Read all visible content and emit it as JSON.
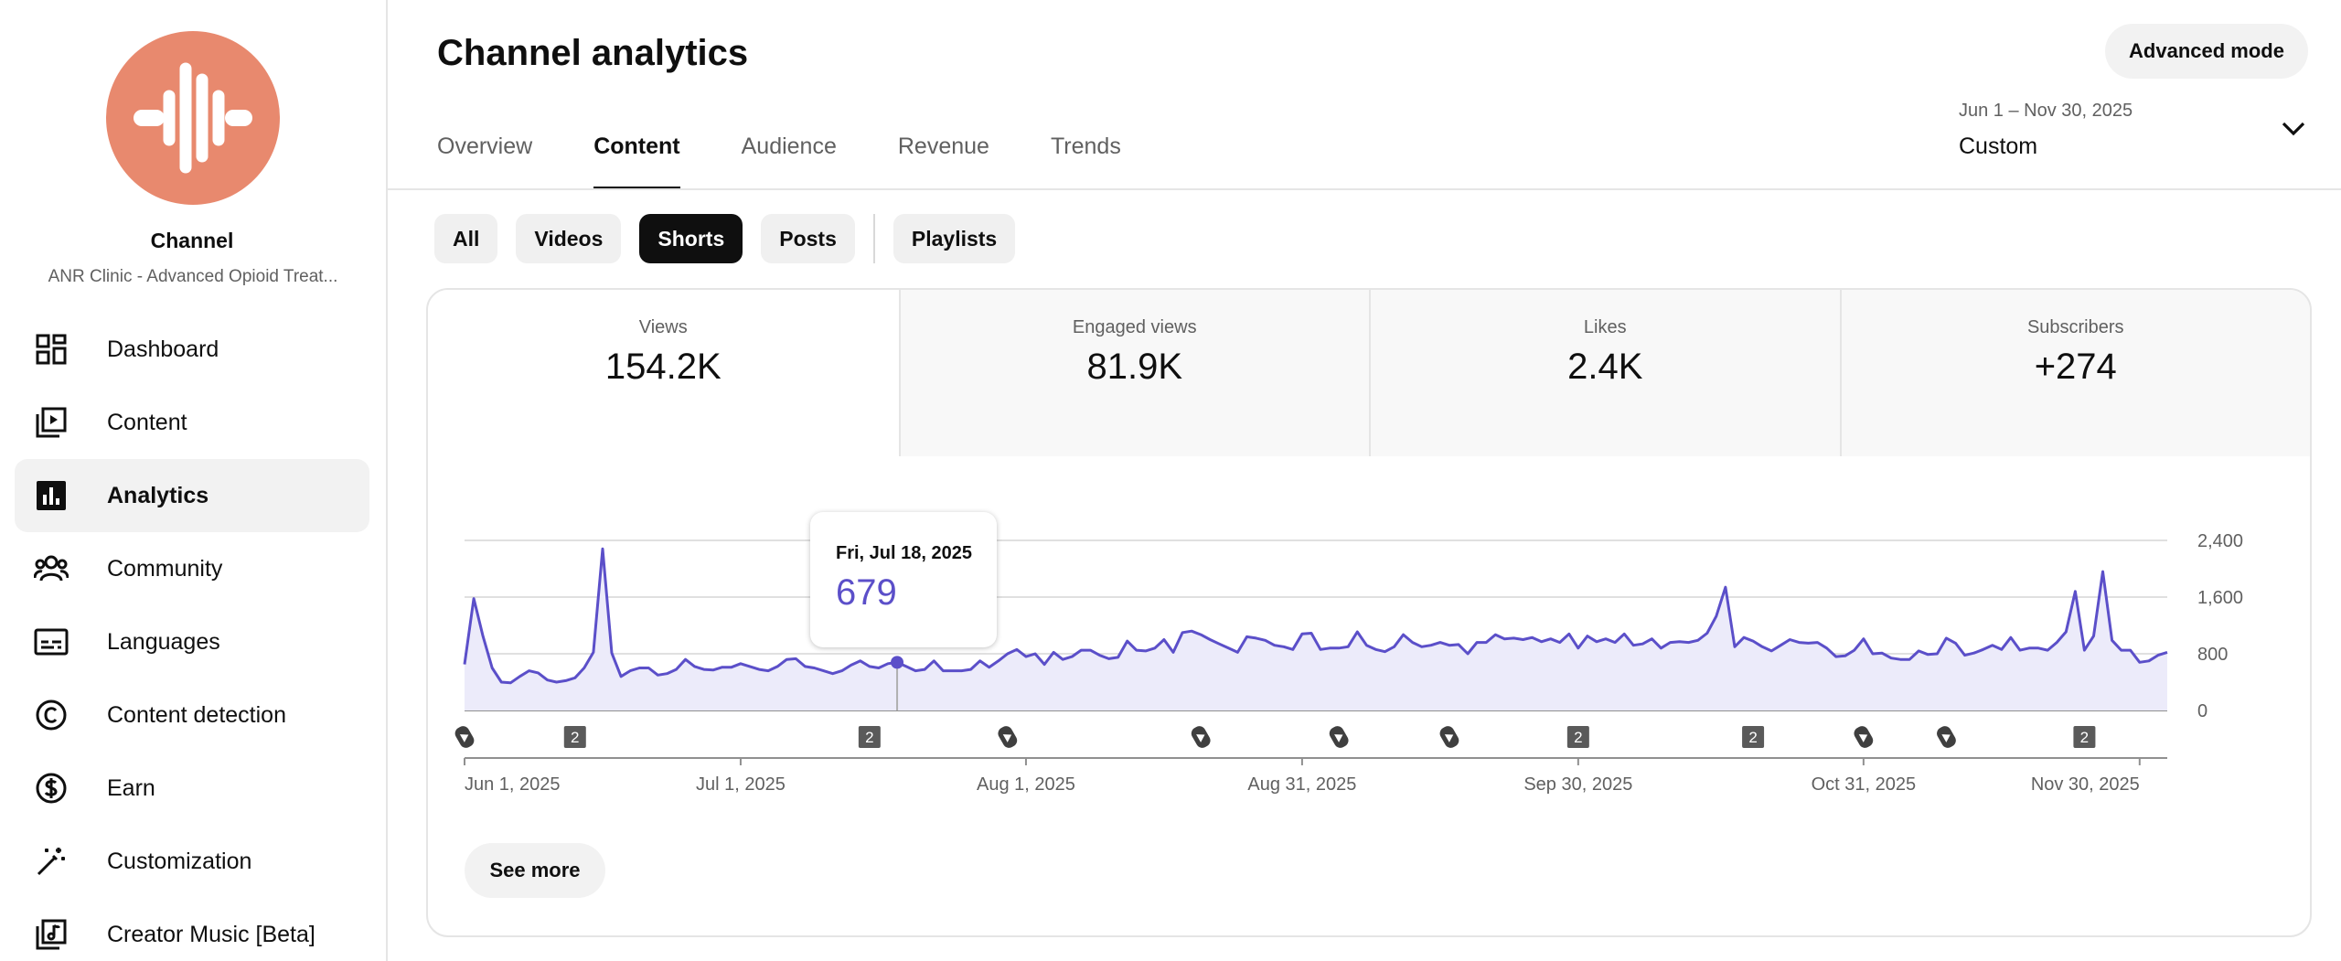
{
  "sidebar": {
    "channel_label": "Channel",
    "channel_name": "ANR Clinic - Advanced Opioid Treat...",
    "items": [
      {
        "label": "Dashboard",
        "icon": "dashboard-icon"
      },
      {
        "label": "Content",
        "icon": "content-icon"
      },
      {
        "label": "Analytics",
        "icon": "analytics-icon",
        "active": true
      },
      {
        "label": "Community",
        "icon": "community-icon"
      },
      {
        "label": "Languages",
        "icon": "languages-icon"
      },
      {
        "label": "Content detection",
        "icon": "copyright-icon"
      },
      {
        "label": "Earn",
        "icon": "dollar-icon"
      },
      {
        "label": "Customization",
        "icon": "magic-wand-icon"
      },
      {
        "label": "Creator Music [Beta]",
        "icon": "music-note-icon"
      }
    ]
  },
  "header": {
    "title": "Channel analytics",
    "advanced_mode": "Advanced mode",
    "tabs": [
      "Overview",
      "Content",
      "Audience",
      "Revenue",
      "Trends"
    ],
    "active_tab": "Content",
    "date_range": {
      "range": "Jun 1 – Nov 30, 2025",
      "label": "Custom"
    }
  },
  "chips": {
    "items": [
      "All",
      "Videos",
      "Shorts",
      "Posts"
    ],
    "playlists": "Playlists",
    "active": "Shorts"
  },
  "metrics": [
    {
      "label": "Views",
      "value": "154.2K"
    },
    {
      "label": "Engaged views",
      "value": "81.9K"
    },
    {
      "label": "Likes",
      "value": "2.4K"
    },
    {
      "label": "Subscribers",
      "value": "+274"
    }
  ],
  "tooltip": {
    "date": "Fri, Jul 18, 2025",
    "value": "679"
  },
  "see_more": "See more",
  "colors": {
    "accent": "#5b4fc9",
    "fill": "#ecebfa",
    "avatar": "#e8896e"
  },
  "chart_data": {
    "type": "area",
    "x_start": "Jun 1, 2025",
    "x_end": "Nov 30, 2025",
    "x_tick_labels": [
      "Jun 1, 2025",
      "Jul 1, 2025",
      "Aug 1, 2025",
      "Aug 31, 2025",
      "Sep 30, 2025",
      "Oct 31, 2025",
      "Nov 30, 2025"
    ],
    "y_tick_labels": [
      "2,400",
      "1,600",
      "800",
      "0"
    ],
    "ylim": [
      0,
      2400
    ],
    "grid": true,
    "hover_point": {
      "date": "Jul 18, 2025",
      "value": 679
    },
    "daily_views": [
      650,
      1580,
      1050,
      600,
      400,
      390,
      480,
      560,
      530,
      430,
      400,
      420,
      460,
      600,
      820,
      2280,
      810,
      480,
      560,
      600,
      600,
      500,
      520,
      580,
      720,
      620,
      580,
      570,
      610,
      610,
      660,
      620,
      580,
      560,
      620,
      720,
      730,
      620,
      600,
      560,
      520,
      560,
      640,
      700,
      620,
      600,
      660,
      679,
      620,
      560,
      580,
      700,
      560,
      560,
      560,
      580,
      700,
      610,
      700,
      800,
      860,
      760,
      800,
      650,
      820,
      720,
      760,
      850,
      850,
      780,
      730,
      750,
      980,
      850,
      840,
      880,
      1000,
      820,
      1100,
      1120,
      1070,
      1000,
      940,
      880,
      820,
      1040,
      1020,
      990,
      920,
      900,
      860,
      1080,
      1090,
      860,
      880,
      880,
      900,
      1110,
      920,
      860,
      830,
      900,
      1070,
      960,
      900,
      920,
      960,
      920,
      930,
      800,
      960,
      960,
      1070,
      1010,
      1020,
      1000,
      1030,
      970,
      1010,
      960,
      1080,
      880,
      1050,
      970,
      1010,
      960,
      1080,
      920,
      940,
      1010,
      880,
      960,
      970,
      960,
      990,
      1090,
      1330,
      1740,
      900,
      1030,
      980,
      900,
      840,
      920,
      1000,
      960,
      950,
      960,
      880,
      760,
      770,
      850,
      1010,
      800,
      810,
      740,
      720,
      720,
      840,
      790,
      800,
      1020,
      950,
      780,
      810,
      860,
      920,
      860,
      1030,
      850,
      880,
      880,
      850,
      960,
      1110,
      1680,
      850,
      1050,
      1960,
      990,
      850,
      850,
      680,
      700,
      780,
      820
    ],
    "markers": [
      {
        "date": "Jun 1, 2025",
        "kind": "short"
      },
      {
        "date": "Jun 13, 2025",
        "kind": "count",
        "label": "2"
      },
      {
        "date": "Jul 15, 2025",
        "kind": "count",
        "label": "2"
      },
      {
        "date": "Jul 30, 2025",
        "kind": "short"
      },
      {
        "date": "Aug 20, 2025",
        "kind": "short"
      },
      {
        "date": "Sep 4, 2025",
        "kind": "short"
      },
      {
        "date": "Sep 16, 2025",
        "kind": "short"
      },
      {
        "date": "Sep 30, 2025",
        "kind": "count",
        "label": "2"
      },
      {
        "date": "Oct 19, 2025",
        "kind": "count",
        "label": "2"
      },
      {
        "date": "Oct 31, 2025",
        "kind": "short"
      },
      {
        "date": "Nov 9, 2025",
        "kind": "short"
      },
      {
        "date": "Nov 24, 2025",
        "kind": "count",
        "label": "2"
      }
    ]
  }
}
